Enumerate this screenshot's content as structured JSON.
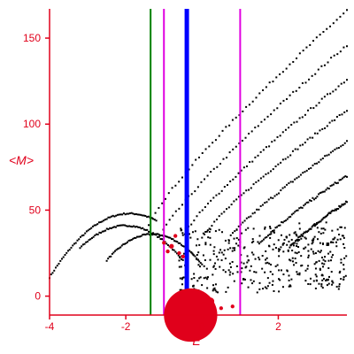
{
  "chart_data": {
    "type": "scatter",
    "xlabel": "E",
    "ylabel": "<M>",
    "xlim": [
      -4,
      3.8
    ],
    "ylim": [
      -11,
      167
    ],
    "x_ticks": [
      -4,
      -2,
      0,
      2
    ],
    "y_ticks": [
      0,
      50,
      100,
      150
    ],
    "x_tick_labels": [
      "-4",
      "-2",
      "0",
      "2"
    ],
    "y_tick_labels": [
      "0",
      "50",
      "100",
      "150"
    ],
    "colors": {
      "axis": "#e0001b",
      "points": "#000000",
      "highlight": "#e0001b",
      "green": "#008000",
      "magenta": "#e000e0",
      "blue": "#0000ff"
    },
    "vertical_lines": [
      {
        "x": -1.35,
        "color": "#008000",
        "kind": "thin"
      },
      {
        "x": -1.0,
        "color": "#e000e0",
        "kind": "thin"
      },
      {
        "x": -0.4,
        "color": "#0000ff",
        "kind": "thick"
      },
      {
        "x": 1.0,
        "color": "#e000e0",
        "kind": "thin"
      }
    ],
    "bands": [
      {
        "x": [
          -4.0,
          -1.2
        ],
        "y": [
          37,
          48
        ],
        "peak": -1.9,
        "peak_y": 48
      },
      {
        "x": [
          -3.2,
          -0.5
        ],
        "y": [
          30,
          42
        ],
        "peak": -2.0,
        "peak_y": 41
      },
      {
        "x": [
          -2.5,
          0.0
        ],
        "y": [
          25,
          35
        ],
        "peak": -1.3,
        "peak_y": 36
      }
    ],
    "curves": [
      {
        "x0": -1.4,
        "y0": 42,
        "x1": 3.8,
        "y1": 166
      },
      {
        "x0": -1.1,
        "y0": 35,
        "x1": 3.8,
        "y1": 146
      },
      {
        "x0": -0.5,
        "y0": 35,
        "x1": 3.8,
        "y1": 126
      },
      {
        "x0": 0.0,
        "y0": 34,
        "x1": 3.8,
        "y1": 108
      },
      {
        "x0": 0.7,
        "y0": 33,
        "x1": 3.8,
        "y1": 90
      },
      {
        "x0": 1.5,
        "y0": 30,
        "x1": 3.8,
        "y1": 70
      },
      {
        "x0": 2.3,
        "y0": 28,
        "x1": 3.8,
        "y1": 55
      }
    ],
    "red_points": [
      {
        "x": -0.3,
        "y": -11,
        "r": 1.4
      },
      {
        "x": 0.05,
        "y": -8,
        "r": 0.4
      },
      {
        "x": 0.22,
        "y": -3,
        "r": 0.2
      },
      {
        "x": -1.0,
        "y": 31,
        "r": 0.1
      },
      {
        "x": -0.8,
        "y": 29,
        "r": 0.12
      },
      {
        "x": -0.6,
        "y": 25,
        "r": 0.1
      },
      {
        "x": -0.9,
        "y": 26,
        "r": 0.1
      },
      {
        "x": -0.7,
        "y": 35,
        "r": 0.1
      },
      {
        "x": -0.5,
        "y": 23,
        "r": 0.1
      },
      {
        "x": 0.5,
        "y": -7,
        "r": 0.1
      },
      {
        "x": 0.8,
        "y": -6,
        "r": 0.1
      }
    ]
  }
}
